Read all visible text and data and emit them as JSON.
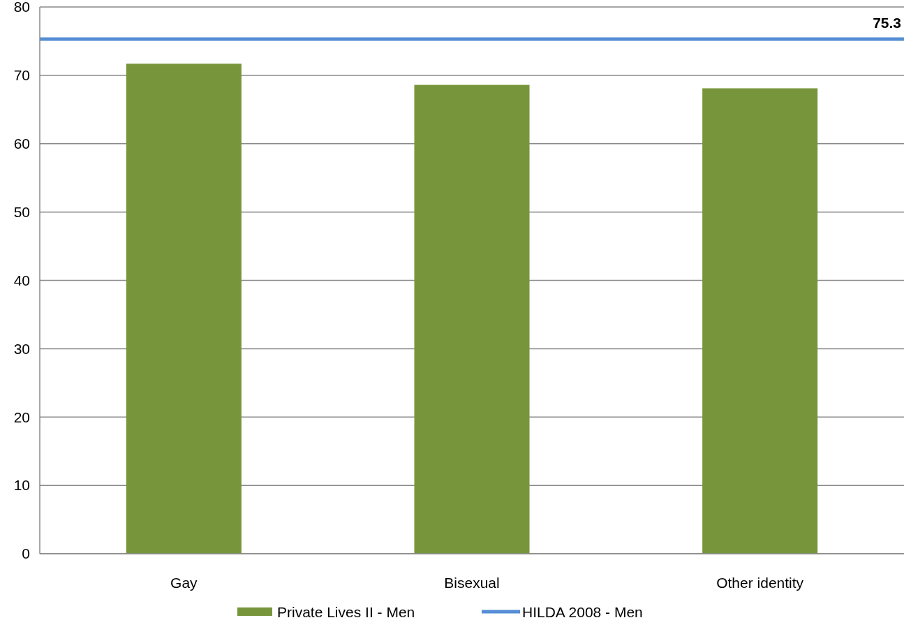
{
  "chart_data": {
    "type": "bar",
    "categories": [
      "Gay",
      "Bisexual",
      "Other identity"
    ],
    "series": [
      {
        "name": "Private Lives II - Men",
        "color": "#77963b",
        "values": [
          71.7,
          68.6,
          68.1
        ]
      }
    ],
    "ref_lines": [
      {
        "axis": "y",
        "value": 75.3,
        "label": "HILDA 2008 - Men",
        "color": "#558ed5"
      }
    ],
    "annotations": [
      "75.3"
    ],
    "ylim": [
      0,
      80
    ],
    "yticks": [
      0,
      10,
      20,
      30,
      40,
      50,
      60,
      70,
      80
    ],
    "grid": "y",
    "legend": "bottom"
  }
}
